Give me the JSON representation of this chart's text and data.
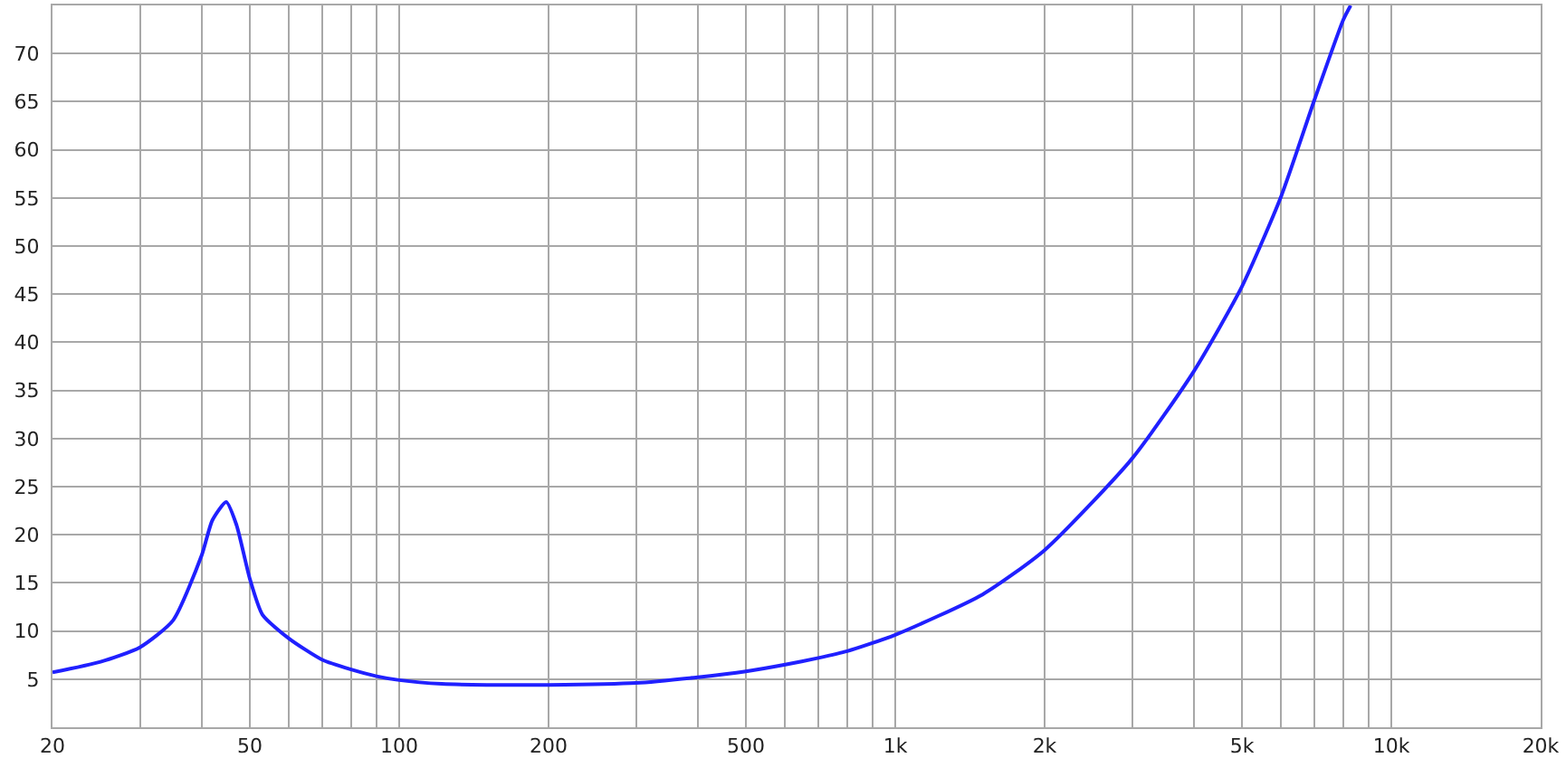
{
  "chart_data": {
    "type": "line",
    "log": "x",
    "grid": true,
    "marker": "none",
    "line_style": "solid",
    "xlim": [
      20,
      20000
    ],
    "ylim": [
      0,
      75
    ],
    "xticks": [
      20,
      {
        "value": 30,
        "label": null
      },
      {
        "value": 40,
        "label": null
      },
      50,
      {
        "value": 60,
        "label": null
      },
      {
        "value": 70,
        "label": null
      },
      {
        "value": 80,
        "label": null
      },
      {
        "value": 90,
        "label": null
      },
      100,
      200,
      {
        "value": 300,
        "label": null
      },
      {
        "value": 400,
        "label": null
      },
      500,
      {
        "value": 600,
        "label": null
      },
      {
        "value": 700,
        "label": null
      },
      {
        "value": 800,
        "label": null
      },
      {
        "value": 900,
        "label": null
      },
      {
        "value": 1000,
        "label": "1k"
      },
      {
        "value": 2000,
        "label": "2k"
      },
      {
        "value": 3000,
        "label": null
      },
      {
        "value": 4000,
        "label": null
      },
      {
        "value": 5000,
        "label": "5k"
      },
      {
        "value": 6000,
        "label": null
      },
      {
        "value": 7000,
        "label": null
      },
      {
        "value": 8000,
        "label": null
      },
      {
        "value": 9000,
        "label": null
      },
      {
        "value": 10000,
        "label": "10k"
      },
      {
        "value": 20000,
        "label": "20k"
      }
    ],
    "yticks": [
      5,
      10,
      15,
      20,
      25,
      30,
      35,
      40,
      45,
      50,
      55,
      60,
      65,
      70
    ],
    "x": [
      20,
      25,
      30,
      35,
      40,
      42,
      44.8,
      47,
      50,
      53,
      60,
      70,
      80,
      90,
      100,
      122,
      150,
      200,
      300,
      400,
      500,
      600,
      700,
      800,
      1000,
      1500,
      2000,
      3000,
      4000,
      5000,
      6000,
      7000,
      8000,
      8280
    ],
    "series": [
      {
        "color": "#2020ff",
        "values": [
          5.7,
          6.8,
          8.3,
          11.1,
          17.9,
          21.5,
          23.4,
          21,
          15.4,
          11.7,
          9.2,
          7.0,
          6.0,
          5.3,
          4.9,
          4.5,
          4.4,
          4.4,
          4.6,
          5.2,
          5.8,
          6.5,
          7.2,
          7.9,
          9.6,
          13.8,
          18.4,
          27.9,
          37.0,
          45.8,
          55.2,
          65.2,
          73.5,
          75
        ]
      }
    ]
  }
}
